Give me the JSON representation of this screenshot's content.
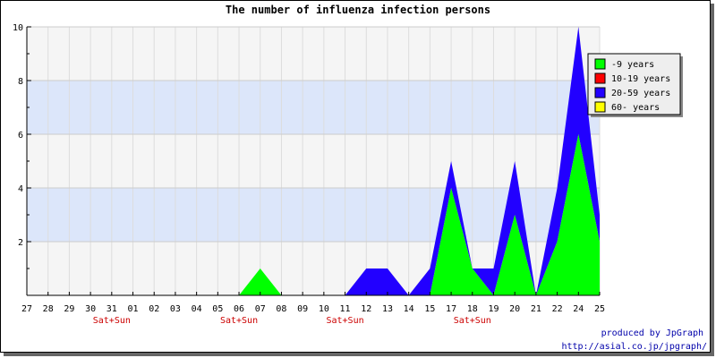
{
  "chart_data": {
    "type": "area",
    "title": "The number of influenza infection persons",
    "categories": [
      "27",
      "28",
      "29",
      "30",
      "31",
      "01",
      "02",
      "03",
      "04",
      "05",
      "06",
      "07",
      "08",
      "09",
      "10",
      "11",
      "12",
      "13",
      "14",
      "15",
      "17",
      "18",
      "19",
      "20",
      "21",
      "22",
      "24",
      "25"
    ],
    "weekend_labels": [
      {
        "category": "31",
        "text": "Sat+Sun"
      },
      {
        "category": "06",
        "text": "Sat+Sun"
      },
      {
        "category": "11",
        "text": "Sat+Sun"
      },
      {
        "category": "18",
        "text": "Sat+Sun"
      }
    ],
    "series": [
      {
        "name": "-9 years",
        "color": "#00ff00",
        "values": [
          0,
          0,
          0,
          0,
          0,
          0,
          0,
          0,
          0,
          0,
          0,
          1,
          0,
          0,
          0,
          0,
          0,
          0,
          0,
          0,
          4,
          1,
          0,
          3,
          0,
          2,
          6,
          2
        ]
      },
      {
        "name": "10-19 years",
        "color": "#ff0000",
        "values": [
          0,
          0,
          0,
          0,
          0,
          0,
          0,
          0,
          0,
          0,
          0,
          0,
          0,
          0,
          0,
          0,
          0,
          0,
          0,
          0,
          0,
          0,
          0,
          0,
          0,
          0,
          0,
          0
        ]
      },
      {
        "name": "20-59 years",
        "color": "#2200ff",
        "values": [
          0,
          0,
          0,
          0,
          0,
          0,
          0,
          0,
          0,
          0,
          0,
          0,
          0,
          0,
          0,
          0,
          1,
          1,
          0,
          1,
          1,
          0,
          1,
          2,
          0,
          2,
          4,
          1
        ]
      },
      {
        "name": "60- years",
        "color": "#ffff00",
        "values": [
          0,
          0,
          0,
          0,
          0,
          0,
          0,
          0,
          0,
          0,
          0,
          0,
          0,
          0,
          0,
          0,
          0,
          0,
          0,
          0,
          0,
          0,
          0,
          0,
          0,
          0,
          0,
          0
        ]
      }
    ],
    "stacked": true,
    "ylim": [
      0,
      10
    ],
    "yticks": [
      2,
      4,
      6,
      8,
      10
    ],
    "legend_position": "top-right",
    "grid": true,
    "band_color": "#dce6fa",
    "plot_background": "#f5f5f5"
  },
  "footer": {
    "line1": "produced by JpGraph",
    "line2": "http://asial.co.jp/jpgraph/"
  }
}
